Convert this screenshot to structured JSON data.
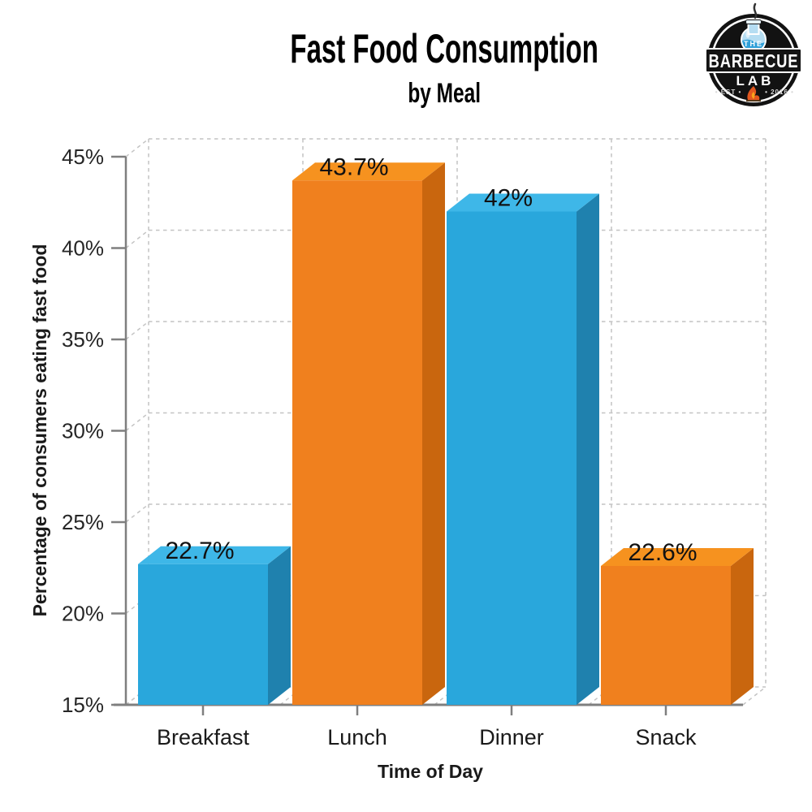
{
  "header": {
    "title": "Fast Food Consumption",
    "subtitle": "by Meal"
  },
  "logo": {
    "the": "THE",
    "name": "BARBECUE",
    "lab": "LAB",
    "est": "• EST •",
    "year": "• 2016 •"
  },
  "chart_data": {
    "type": "bar",
    "projection": "3d",
    "title": "Fast Food Consumption",
    "subtitle": "by Meal",
    "xlabel": "Time of Day",
    "ylabel": "Percentage of consumers eating fast food",
    "categories": [
      "Breakfast",
      "Lunch",
      "Dinner",
      "Snack"
    ],
    "values": [
      22.7,
      43.7,
      42,
      22.6
    ],
    "value_labels": [
      "22.7%",
      "43.7%",
      "42%",
      "22.6%"
    ],
    "bar_colors": [
      "blue",
      "orange",
      "blue",
      "orange"
    ],
    "colors": {
      "blue": {
        "front": "#29A7DC",
        "top": "#3EB7E8",
        "side": "#1F81AE"
      },
      "orange": {
        "front": "#F0801E",
        "top": "#F6921F",
        "side": "#C9660E"
      }
    },
    "ylim": [
      15,
      45
    ],
    "ytick_step": 5,
    "ytick_labels": [
      "15%",
      "20%",
      "25%",
      "30%",
      "35%",
      "40%",
      "45%"
    ],
    "grid": "dashed back-wall and floor gridlines",
    "legend": "none"
  }
}
